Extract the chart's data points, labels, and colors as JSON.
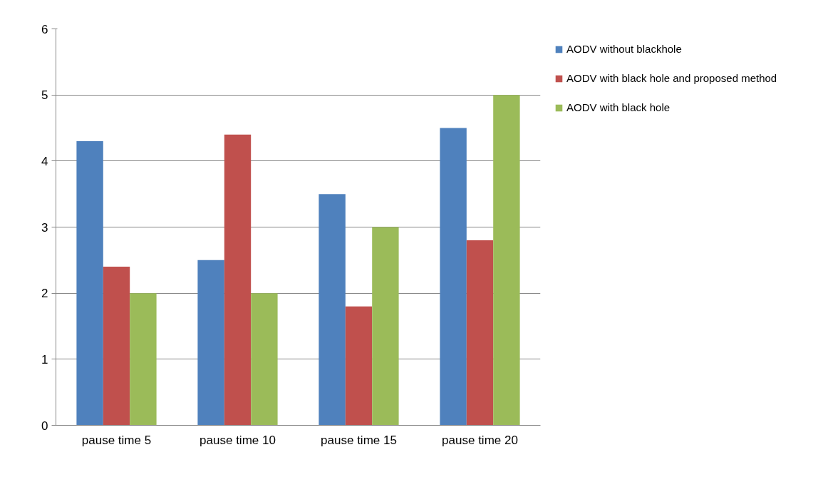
{
  "chart_data": {
    "type": "bar",
    "categories": [
      "pause time 5",
      "pause time 10",
      "pause time 15",
      "pause time 20"
    ],
    "series": [
      {
        "name": "AODV without blackhole",
        "color": "#4f81bd",
        "values": [
          4.3,
          2.5,
          3.5,
          4.5
        ]
      },
      {
        "name": "AODV with black hole and proposed method",
        "color": "#c0504d",
        "values": [
          2.4,
          4.4,
          1.8,
          2.8
        ]
      },
      {
        "name": "AODV with black hole",
        "color": "#9bbb59",
        "values": [
          2.0,
          2.0,
          3.0,
          5.0
        ]
      }
    ],
    "ylim": [
      0,
      6
    ],
    "yticks": [
      0,
      1,
      2,
      3,
      4,
      5,
      6
    ],
    "grid": "y",
    "legend": "right"
  }
}
